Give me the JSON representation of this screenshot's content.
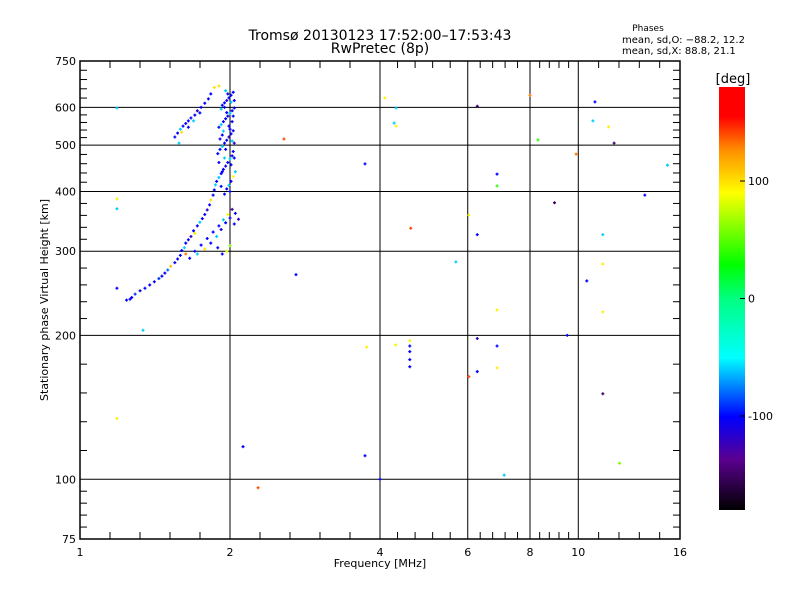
{
  "chart_data": {
    "type": "scatter",
    "title": "Tromsø 20130123 17:52:00–17:53:43",
    "subtitle": "RwPretec (8p)",
    "annotation": {
      "heading": "Phases",
      "line_o": "mean, sd,O: −88.2, 12.2",
      "line_x": "mean, sd,X:  88.8, 21.1"
    },
    "xlabel": "Frequency [MHz]",
    "ylabel": "Stationary phase Virtual Height [km]",
    "xscale": "log",
    "yscale": "log",
    "xlim": [
      1,
      16
    ],
    "ylim": [
      75,
      750
    ],
    "xticks": [
      1,
      2,
      4,
      6,
      8,
      10,
      16
    ],
    "yticks": [
      75,
      100,
      200,
      300,
      400,
      500,
      600,
      750
    ],
    "grid": true,
    "colorbar": {
      "label": "[deg]",
      "range": [
        -180,
        180
      ],
      "ticks": [
        100,
        0,
        -100
      ]
    },
    "point_fields": [
      "frequency_MHz",
      "height_km",
      "phase_deg"
    ],
    "points": [
      [
        1.24,
        237,
        -100
      ],
      [
        1.26,
        238,
        -100
      ],
      [
        1.27,
        240,
        -100
      ],
      [
        1.29,
        244,
        -90
      ],
      [
        1.32,
        248,
        -100
      ],
      [
        1.35,
        251,
        -100
      ],
      [
        1.38,
        255,
        -100
      ],
      [
        1.41,
        259,
        -100
      ],
      [
        1.44,
        263,
        -90
      ],
      [
        1.46,
        266,
        -100
      ],
      [
        1.48,
        270,
        -100
      ],
      [
        1.5,
        274,
        -80
      ],
      [
        1.52,
        279,
        110
      ],
      [
        1.55,
        284,
        -100
      ],
      [
        1.57,
        289,
        -100
      ],
      [
        1.59,
        294,
        -100
      ],
      [
        1.6,
        301,
        -100
      ],
      [
        1.62,
        305,
        -60
      ],
      [
        1.63,
        312,
        -100
      ],
      [
        1.65,
        317,
        -100
      ],
      [
        1.67,
        322,
        -120
      ],
      [
        1.69,
        331,
        -100
      ],
      [
        1.7,
        327,
        95
      ],
      [
        1.72,
        339,
        -100
      ],
      [
        1.74,
        345,
        -60
      ],
      [
        1.76,
        351,
        -100
      ],
      [
        1.78,
        358,
        -100
      ],
      [
        1.8,
        366,
        -120
      ],
      [
        1.82,
        375,
        -100
      ],
      [
        1.83,
        384,
        100
      ],
      [
        1.85,
        393,
        -100
      ],
      [
        1.86,
        403,
        -100
      ],
      [
        1.87,
        413,
        -60
      ],
      [
        1.63,
        296,
        130
      ],
      [
        1.66,
        290,
        -100
      ],
      [
        1.7,
        300,
        -100
      ],
      [
        1.72,
        296,
        -60
      ],
      [
        1.75,
        309,
        -100
      ],
      [
        1.78,
        303,
        100
      ],
      [
        1.8,
        319,
        -100
      ],
      [
        1.83,
        312,
        -100
      ],
      [
        1.85,
        329,
        -100
      ],
      [
        1.88,
        322,
        -60
      ],
      [
        1.9,
        339,
        -100
      ],
      [
        1.92,
        333,
        -110
      ],
      [
        1.94,
        349,
        -60
      ],
      [
        1.96,
        344,
        -100
      ],
      [
        1.98,
        358,
        90
      ],
      [
        2.0,
        352,
        -100
      ],
      [
        2.02,
        367,
        -130
      ],
      [
        2.04,
        342,
        -100
      ],
      [
        1.97,
        300,
        80
      ],
      [
        2.0,
        308,
        60
      ],
      [
        1.93,
        296,
        -100
      ],
      [
        1.89,
        305,
        -100
      ],
      [
        2.05,
        360,
        -100
      ],
      [
        2.08,
        350,
        -120
      ],
      [
        1.88,
        420,
        -100
      ],
      [
        1.9,
        428,
        -60
      ],
      [
        1.92,
        436,
        -100
      ],
      [
        1.94,
        445,
        -100
      ],
      [
        1.96,
        452,
        -110
      ],
      [
        1.98,
        460,
        -100
      ],
      [
        2.0,
        468,
        -60
      ],
      [
        2.02,
        475,
        -100
      ],
      [
        1.89,
        480,
        -100
      ],
      [
        1.91,
        490,
        -100
      ],
      [
        1.93,
        497,
        -60
      ],
      [
        1.95,
        505,
        -100
      ],
      [
        1.97,
        512,
        -100
      ],
      [
        1.99,
        520,
        -120
      ],
      [
        2.01,
        528,
        -100
      ],
      [
        2.03,
        536,
        -100
      ],
      [
        1.9,
        545,
        -100
      ],
      [
        1.92,
        552,
        -60
      ],
      [
        1.94,
        560,
        -100
      ],
      [
        1.96,
        568,
        -100
      ],
      [
        1.98,
        575,
        -100
      ],
      [
        2.0,
        583,
        -60
      ],
      [
        2.02,
        590,
        -100
      ],
      [
        2.04,
        598,
        -100
      ],
      [
        1.93,
        606,
        -100
      ],
      [
        1.95,
        613,
        -100
      ],
      [
        1.97,
        620,
        -110
      ],
      [
        1.99,
        628,
        -100
      ],
      [
        2.01,
        636,
        -100
      ],
      [
        2.03,
        645,
        -100
      ],
      [
        1.96,
        650,
        -60
      ],
      [
        1.9,
        665,
        100
      ],
      [
        1.95,
        395,
        -100
      ],
      [
        1.97,
        405,
        -100
      ],
      [
        1.99,
        412,
        -60
      ],
      [
        2.01,
        420,
        -100
      ],
      [
        2.03,
        430,
        90
      ],
      [
        1.93,
        440,
        -100
      ],
      [
        1.95,
        470,
        -60
      ],
      [
        2.01,
        455,
        -100
      ],
      [
        2.03,
        485,
        -100
      ],
      [
        1.91,
        515,
        -100
      ],
      [
        2.04,
        505,
        -120
      ],
      [
        2.0,
        540,
        -100
      ],
      [
        1.94,
        535,
        -60
      ],
      [
        2.02,
        560,
        -100
      ],
      [
        1.97,
        585,
        -100
      ],
      [
        1.92,
        595,
        -60
      ],
      [
        2.04,
        620,
        -100
      ],
      [
        1.98,
        640,
        -100
      ],
      [
        2.0,
        400,
        -100
      ],
      [
        1.92,
        410,
        -100
      ],
      [
        2.05,
        440,
        -60
      ],
      [
        1.9,
        460,
        -100
      ],
      [
        2.04,
        470,
        -100
      ],
      [
        1.96,
        490,
        -100
      ],
      [
        2.02,
        510,
        -60
      ],
      [
        1.93,
        525,
        -100
      ],
      [
        1.99,
        548,
        -100
      ],
      [
        2.03,
        575,
        -100
      ],
      [
        1.95,
        600,
        -100
      ],
      [
        2.01,
        615,
        -60
      ],
      [
        1.55,
        520,
        -100
      ],
      [
        1.57,
        530,
        -100
      ],
      [
        1.59,
        540,
        -60
      ],
      [
        1.61,
        548,
        -100
      ],
      [
        1.63,
        555,
        -100
      ],
      [
        1.65,
        562,
        -100
      ],
      [
        1.67,
        570,
        -100
      ],
      [
        1.7,
        578,
        -100
      ],
      [
        1.72,
        590,
        -120
      ],
      [
        1.75,
        600,
        -100
      ],
      [
        1.78,
        612,
        -100
      ],
      [
        1.81,
        625,
        -100
      ],
      [
        1.83,
        640,
        -100
      ],
      [
        1.6,
        532,
        100
      ],
      [
        1.58,
        505,
        -60
      ],
      [
        1.65,
        545,
        -100
      ],
      [
        1.69,
        562,
        -60
      ],
      [
        1.74,
        584,
        -100
      ],
      [
        1.86,
        660,
        100
      ],
      [
        1.186,
        598,
        -60
      ],
      [
        1.186,
        386,
        95
      ],
      [
        1.186,
        368,
        -60
      ],
      [
        1.186,
        251,
        -100
      ],
      [
        1.186,
        134,
        95
      ],
      [
        1.338,
        205,
        -60
      ],
      [
        2.567,
        515,
        140
      ],
      [
        2.713,
        268,
        -100
      ],
      [
        2.124,
        117,
        -100
      ],
      [
        2.277,
        96,
        140
      ],
      [
        3.732,
        457,
        -100
      ],
      [
        3.732,
        112,
        -100
      ],
      [
        4.0,
        100,
        -100
      ],
      [
        4.09,
        628,
        95
      ],
      [
        4.31,
        598,
        -60
      ],
      [
        4.27,
        556,
        -60
      ],
      [
        4.31,
        548,
        95
      ],
      [
        4.61,
        335,
        140
      ],
      [
        3.76,
        189,
        95
      ],
      [
        4.3,
        191,
        95
      ],
      [
        4.59,
        195,
        95
      ],
      [
        4.59,
        190,
        -100
      ],
      [
        4.59,
        185,
        -100
      ],
      [
        4.59,
        178,
        -100
      ],
      [
        4.59,
        172,
        -100
      ],
      [
        5.68,
        285,
        -60
      ],
      [
        6.03,
        357,
        95
      ],
      [
        6.27,
        603,
        -150
      ],
      [
        6.27,
        325,
        -100
      ],
      [
        6.03,
        164,
        140
      ],
      [
        6.27,
        197,
        -120
      ],
      [
        6.27,
        168,
        -100
      ],
      [
        6.87,
        435,
        -100
      ],
      [
        6.87,
        411,
        40
      ],
      [
        6.87,
        226,
        95
      ],
      [
        6.87,
        190,
        -100
      ],
      [
        6.87,
        171,
        95
      ],
      [
        7.1,
        102,
        -60
      ],
      [
        8.0,
        636,
        130
      ],
      [
        8.3,
        513,
        40
      ],
      [
        8.96,
        379,
        -150
      ],
      [
        9.5,
        200,
        -100
      ],
      [
        9.9,
        479,
        130
      ],
      [
        10.4,
        260,
        -100
      ],
      [
        10.8,
        616,
        -100
      ],
      [
        10.7,
        562,
        -60
      ],
      [
        11.2,
        325,
        -60
      ],
      [
        11.2,
        282,
        95
      ],
      [
        11.2,
        224,
        95
      ],
      [
        11.2,
        151,
        -150
      ],
      [
        11.5,
        546,
        95
      ],
      [
        11.8,
        505,
        -150
      ],
      [
        12.1,
        108,
        60
      ],
      [
        13.6,
        393,
        -100
      ],
      [
        15.1,
        454,
        -60
      ]
    ]
  }
}
